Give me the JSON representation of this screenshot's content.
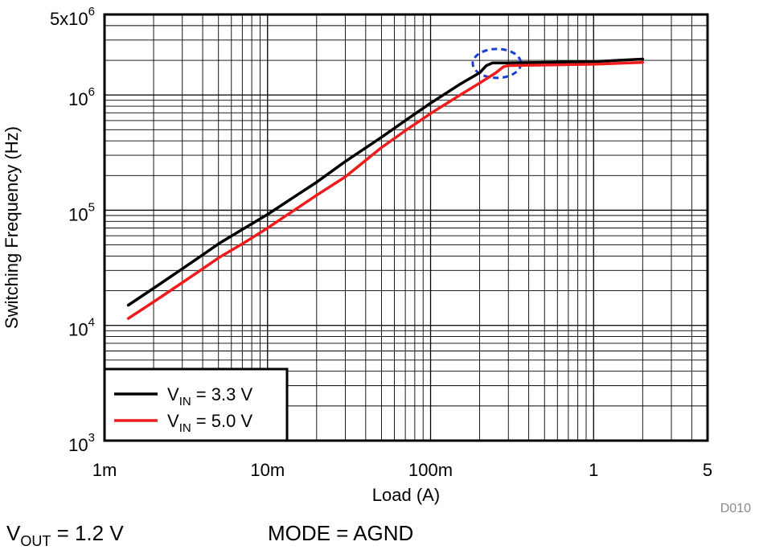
{
  "chart_data": {
    "type": "line",
    "xlabel": "Load (A)",
    "ylabel": "Switching Frequency (Hz)",
    "x_scale": "log",
    "y_scale": "log",
    "xlim": [
      0.001,
      5
    ],
    "ylim": [
      1000,
      5000000
    ],
    "grid": true,
    "x_ticks": [
      {
        "value": 0.001,
        "label": "1m"
      },
      {
        "value": 0.01,
        "label": "10m"
      },
      {
        "value": 0.1,
        "label": "100m"
      },
      {
        "value": 1,
        "label": "1"
      },
      {
        "value": 5,
        "label": "5"
      }
    ],
    "y_ticks": [
      {
        "value": 1000,
        "base": "10",
        "exp": "3"
      },
      {
        "value": 10000,
        "base": "10",
        "exp": "4"
      },
      {
        "value": 100000,
        "base": "10",
        "exp": "5"
      },
      {
        "value": 1000000,
        "base": "10",
        "exp": "6"
      },
      {
        "value": 5000000,
        "base": "5x10",
        "exp": "6"
      }
    ],
    "legend_position": "bottom-left",
    "series": [
      {
        "name_main": "V",
        "name_sub": "IN",
        "name_rest": " = 3.3 V",
        "color": "#000000",
        "x": [
          0.0014,
          0.002,
          0.003,
          0.004,
          0.005,
          0.007,
          0.01,
          0.02,
          0.03,
          0.05,
          0.07,
          0.1,
          0.15,
          0.2,
          0.22,
          0.24,
          0.3,
          0.5,
          1,
          2
        ],
        "y": [
          15000,
          21000,
          31000,
          41000,
          51000,
          68000,
          92000,
          175000,
          265000,
          430000,
          600000,
          850000,
          1230000,
          1560000,
          1800000,
          1900000,
          1900000,
          1920000,
          1950000,
          2050000
        ]
      },
      {
        "name_main": "V",
        "name_sub": "IN",
        "name_rest": " = 5.0 V",
        "color": "#ee1c1c",
        "x": [
          0.0014,
          0.002,
          0.003,
          0.004,
          0.005,
          0.007,
          0.01,
          0.02,
          0.03,
          0.05,
          0.07,
          0.1,
          0.15,
          0.2,
          0.25,
          0.28,
          0.3,
          0.5,
          1,
          2
        ],
        "y": [
          11500,
          16000,
          23500,
          31000,
          38500,
          51000,
          70000,
          135000,
          195000,
          350000,
          490000,
          690000,
          990000,
          1270000,
          1550000,
          1760000,
          1800000,
          1820000,
          1850000,
          1920000
        ]
      }
    ],
    "annotation": {
      "shape": "dashed-ellipse",
      "color": "#1a3fd6",
      "x": 0.255,
      "y": 1880000
    }
  },
  "footer": {
    "vout_main": "V",
    "vout_sub": "OUT",
    "vout_rest": " = 1.2 V",
    "mode": "MODE = AGND",
    "figure_id": "D010"
  }
}
